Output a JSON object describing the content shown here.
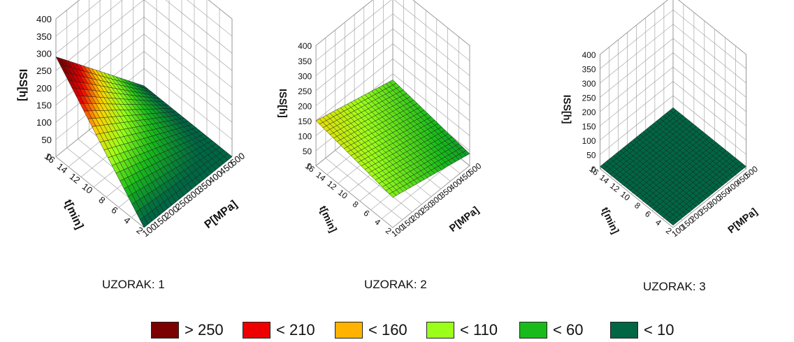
{
  "chart_data": [
    {
      "type": "surface3d",
      "caption": "UZORAK: 1",
      "zlabel": "ISS[h]",
      "ylabel": "t[min]",
      "xlabel": "P[MPa]",
      "z_ticks": [
        "0",
        "50",
        "100",
        "150",
        "200",
        "250",
        "300",
        "350",
        "400"
      ],
      "y_ticks": [
        "2",
        "4",
        "6",
        "8",
        "10",
        "12",
        "14",
        "16"
      ],
      "x_ticks": [
        "100",
        "150",
        "200",
        "250",
        "300",
        "350",
        "400",
        "450",
        "500"
      ],
      "zlim": [
        0,
        400
      ],
      "ylim": [
        2,
        16
      ],
      "xlim": [
        100,
        500
      ],
      "surface": {
        "z_at_P_min_t_min": 0,
        "z_at_P_min_t_max": 290,
        "z_at_P_max_t_min": 0,
        "z_at_P_max_t_max": 0
      }
    },
    {
      "type": "surface3d",
      "caption": "UZORAK: 2",
      "zlabel": "ISS[h]",
      "ylabel": "t[min]",
      "xlabel": "P[MPa]",
      "z_ticks": [
        "0",
        "50",
        "100",
        "150",
        "200",
        "250",
        "300",
        "350",
        "400"
      ],
      "y_ticks": [
        "2",
        "4",
        "6",
        "8",
        "10",
        "12",
        "14",
        "16"
      ],
      "x_ticks": [
        "100",
        "150",
        "200",
        "250",
        "300",
        "350",
        "400",
        "450",
        "500"
      ],
      "zlim": [
        0,
        400
      ],
      "ylim": [
        2,
        16
      ],
      "xlim": [
        100,
        500
      ],
      "surface": {
        "z_at_P_min_t_min": 100,
        "z_at_P_min_t_max": 150,
        "z_at_P_max_t_min": 40,
        "z_at_P_max_t_max": 80
      }
    },
    {
      "type": "surface3d",
      "caption": "UZORAK: 3",
      "zlabel": "ISS[h]",
      "ylabel": "t[min]",
      "xlabel": "P[MPa]",
      "z_ticks": [
        "0",
        "50",
        "100",
        "150",
        "200",
        "250",
        "300",
        "350",
        "400"
      ],
      "y_ticks": [
        "2",
        "4",
        "6",
        "8",
        "10",
        "12",
        "14",
        "16"
      ],
      "x_ticks": [
        "100",
        "150",
        "200",
        "250",
        "300",
        "350",
        "400",
        "450",
        "500"
      ],
      "zlim": [
        0,
        400
      ],
      "ylim": [
        2,
        16
      ],
      "xlim": [
        100,
        500
      ],
      "surface": {
        "z_at_P_min_t_min": 8,
        "z_at_P_min_t_max": 8,
        "z_at_P_max_t_min": 8,
        "z_at_P_max_t_max": 8
      }
    }
  ],
  "legend": [
    {
      "label": "> 250",
      "color": "#7b0000"
    },
    {
      "label": "< 210",
      "color": "#ee0000"
    },
    {
      "label": "< 160",
      "color": "#ffb300"
    },
    {
      "label": "< 110",
      "color": "#9bff1a"
    },
    {
      "label": "< 60",
      "color": "#19bb1a"
    },
    {
      "label": "< 10",
      "color": "#006644"
    }
  ]
}
